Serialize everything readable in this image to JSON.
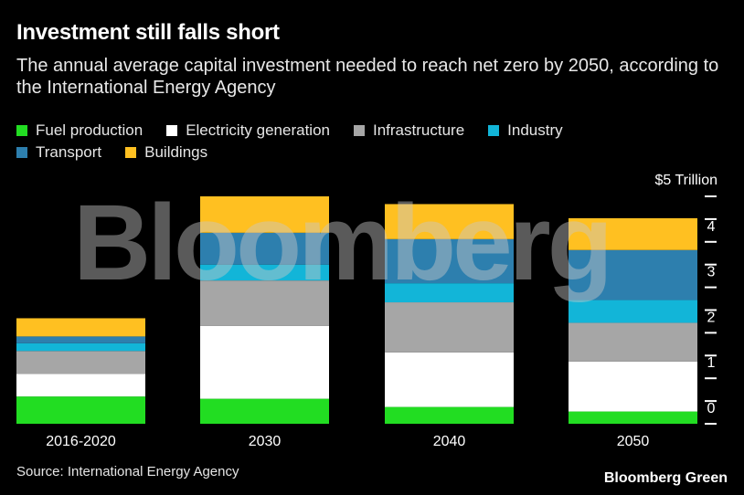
{
  "title": "Investment still falls short",
  "subtitle": "The annual average capital investment needed to reach net zero by 2050, according to the International Energy Agency",
  "source": "Source: International Energy Agency",
  "brand": "Bloomberg Green",
  "watermark": "Bloomberg",
  "chart_data": {
    "type": "bar",
    "stacked": true,
    "categories": [
      "2016-2020",
      "2030",
      "2040",
      "2050"
    ],
    "series": [
      {
        "name": "Fuel production",
        "color": "#22dd22",
        "values": [
          0.6,
          0.55,
          0.37,
          0.27
        ]
      },
      {
        "name": "Electricity generation",
        "color": "#ffffff",
        "values": [
          0.5,
          1.6,
          1.2,
          1.1
        ]
      },
      {
        "name": "Infrastructure",
        "color": "#a6a6a6",
        "values": [
          0.5,
          1.0,
          1.1,
          0.85
        ]
      },
      {
        "name": "Industry",
        "color": "#12b5d8",
        "values": [
          0.17,
          0.35,
          0.42,
          0.5
        ]
      },
      {
        "name": "Transport",
        "color": "#2d7fae",
        "values": [
          0.15,
          0.7,
          0.97,
          1.1
        ]
      },
      {
        "name": "Buildings",
        "color": "#ffc021",
        "values": [
          0.4,
          0.8,
          0.77,
          0.7
        ]
      }
    ],
    "y_ticks": [
      "0",
      "1",
      "2",
      "3",
      "4",
      "$5 Trillion"
    ],
    "ylim": [
      0,
      5
    ],
    "axis_side": "right",
    "legend_position": "top-left"
  }
}
